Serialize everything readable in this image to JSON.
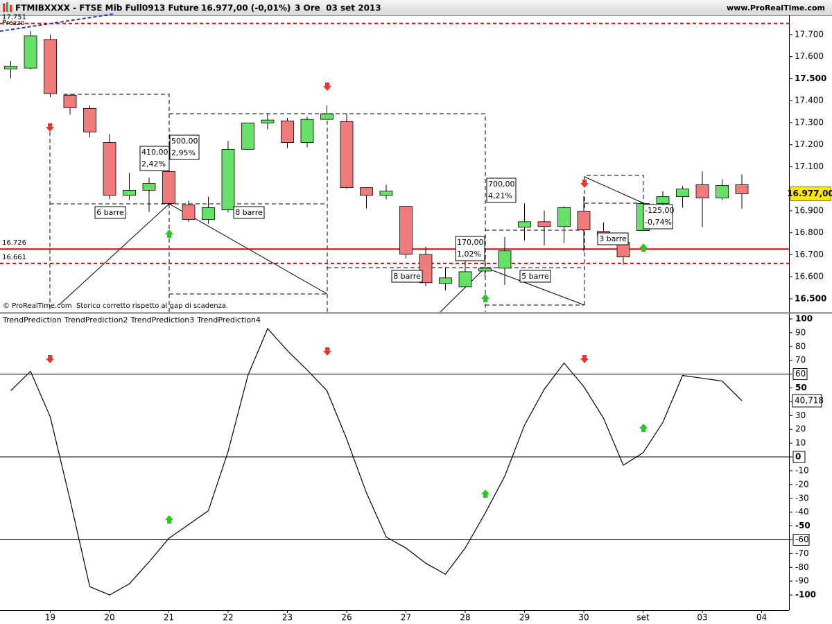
{
  "header": {
    "symbol": "FTMIBXXXX - FTSE Mib Full0913 Future",
    "price": "16.977,00 (-0,01%)",
    "timeframe": "3 Ore  03 set 2013",
    "website": "www.ProRealTime.com"
  },
  "chart_data": [
    {
      "type": "candlestick",
      "legend": "Prezzo",
      "note": "© ProRealTime.com  Storico corretto rispetto al gap di scadenza.",
      "up_color": "#66e066",
      "down_color": "#ef7b7b",
      "open": [
        17544,
        17548,
        17678,
        17425,
        17365,
        17210,
        16970,
        16993,
        17078,
        16926,
        16860,
        16904,
        17179,
        17299,
        17308,
        17210,
        17315,
        17305,
        17005,
        16970,
        16920,
        16702,
        16570,
        16554,
        16626,
        16639,
        16825,
        16850,
        16828,
        16898,
        16806,
        16756,
        16810,
        16933,
        16964,
        17018,
        16958,
        17018,
        null
      ],
      "high": [
        17580,
        17716,
        17700,
        17430,
        17378,
        17248,
        17072,
        17050,
        17078,
        16945,
        16964,
        17217,
        17299,
        17343,
        17321,
        17327,
        17378,
        17340,
        17005,
        17018,
        16920,
        16737,
        16642,
        16721,
        16680,
        16781,
        16933,
        16901,
        16920,
        16967,
        16847,
        16784,
        16933,
        16989,
        17012,
        17078,
        17043,
        17065,
        null
      ],
      "low": [
        17501,
        17542,
        17416,
        17337,
        17233,
        16952,
        16949,
        16895,
        16926,
        16850,
        16841,
        16892,
        17179,
        17270,
        17185,
        17188,
        17315,
        16999,
        16910,
        16952,
        16683,
        16557,
        16538,
        16554,
        16601,
        16563,
        16765,
        16743,
        16753,
        16715,
        16768,
        16655,
        16810,
        16876,
        16914,
        16825,
        16948,
        16910,
        null
      ],
      "close": [
        17557,
        17694,
        17432,
        17368,
        17258,
        16970,
        16993,
        17024,
        16933,
        16860,
        16914,
        17179,
        17299,
        17312,
        17210,
        17315,
        17340,
        17005,
        16970,
        16989,
        16702,
        16573,
        16595,
        16623,
        16639,
        16718,
        16850,
        16828,
        16914,
        16813,
        16790,
        16690,
        16933,
        16964,
        16999,
        16958,
        17015,
        16977,
        null
      ],
      "ylim": [
        16440,
        17788
      ],
      "yticks": [
        {
          "value": 16500,
          "label": "16.500"
        },
        {
          "value": 16600,
          "label": "16.600"
        },
        {
          "value": 16700,
          "label": "16.700"
        },
        {
          "value": 16800,
          "label": "16.800"
        },
        {
          "value": 16900,
          "label": "16.900"
        },
        {
          "value": 17100,
          "label": "17.100"
        },
        {
          "value": 17200,
          "label": "17.200"
        },
        {
          "value": 17300,
          "label": "17.300"
        },
        {
          "value": 17400,
          "label": "17.400"
        },
        {
          "value": 17500,
          "label": "17.500"
        },
        {
          "value": 17600,
          "label": "17.600"
        },
        {
          "value": 17700,
          "label": "17.700"
        }
      ],
      "last_price": {
        "value": 16977,
        "label": "16.977,00"
      },
      "levels": [
        {
          "value": 17751,
          "label": "17.751",
          "color": "#e00000",
          "dashed": true
        },
        {
          "value": 16726,
          "label": "16.726",
          "color": "#e00000",
          "dashed": false
        },
        {
          "value": 16661,
          "label": "16.661",
          "color": "#e00000",
          "dashed": true
        }
      ],
      "bar_counts": [
        "6 barre",
        "8 barre",
        "8 barre",
        "5 barre",
        "3 barre"
      ],
      "moves": [
        {
          "points": "410,00",
          "percent": "2,42%"
        },
        {
          "points": "500,00",
          "percent": "2,95%"
        },
        {
          "points": "700,00",
          "percent": "4,21%"
        },
        {
          "points": "170,00",
          "percent": "1,02%"
        },
        {
          "points": "-125,00",
          "percent": "-0,74%"
        }
      ]
    },
    {
      "type": "line",
      "legend_labels": [
        "TrendPrediction",
        "TrendPrediction2",
        "TrendPrediction3",
        "TrendPrediction4"
      ],
      "categories": [
        null,
        null,
        "19",
        null,
        null,
        "20",
        null,
        null,
        "21",
        null,
        null,
        "22",
        null,
        null,
        "23",
        null,
        null,
        "26",
        null,
        null,
        "27",
        null,
        null,
        "28",
        null,
        null,
        "29",
        null,
        null,
        "30",
        null,
        null,
        "set",
        null,
        null,
        "03",
        null,
        null,
        "04"
      ],
      "color": "#000000",
      "values": [
        48,
        62,
        29,
        -31,
        -94,
        -100,
        -92,
        -76,
        -59,
        -49,
        -39,
        4,
        59,
        93,
        77,
        63,
        48,
        13,
        -26,
        -58,
        -66,
        -77,
        -85,
        -66,
        -41,
        -14,
        23,
        49,
        68,
        51,
        28,
        -6,
        3,
        25,
        59,
        57,
        55,
        40.718,
        null
      ],
      "last_value": {
        "value": 40.718,
        "label": "40,718"
      },
      "hlines": [
        60,
        0,
        -60
      ],
      "ylim": [
        -111,
        104
      ],
      "yticks": [
        -100,
        -90,
        -80,
        -70,
        -60,
        -50,
        -40,
        -30,
        -20,
        -10,
        0,
        10,
        20,
        30,
        40,
        50,
        60,
        70,
        80,
        90,
        100
      ]
    }
  ]
}
